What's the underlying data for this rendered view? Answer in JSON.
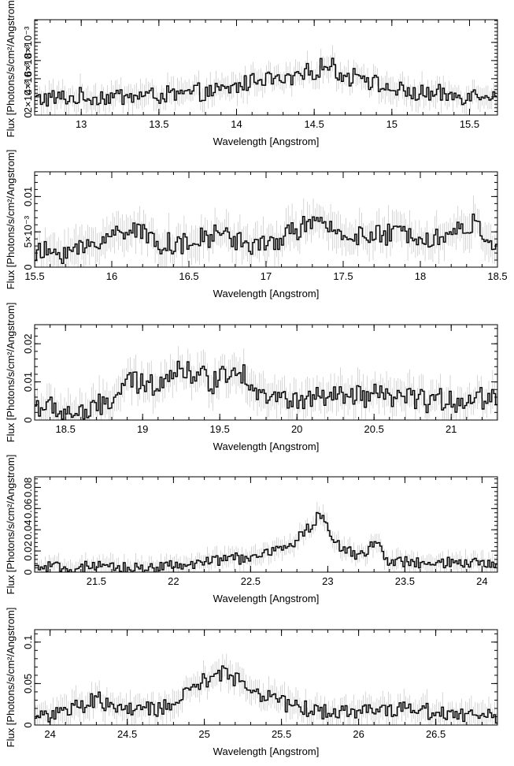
{
  "figure": {
    "panel_count": 5
  },
  "chart_data": [
    {
      "type": "line",
      "style": "step histogram with error bars",
      "xlabel": "Wavelength [Angstrom]",
      "ylabel": "Flux [Photons/s/cm²/Angstrom]",
      "xlim": [
        12.7,
        15.68
      ],
      "ylim": [
        0,
        0.0105
      ],
      "xticks": [
        {
          "v": 13,
          "t": "13"
        },
        {
          "v": 13.5,
          "t": "13.5"
        },
        {
          "v": 14,
          "t": "14"
        },
        {
          "v": 14.5,
          "t": "14.5"
        },
        {
          "v": 15,
          "t": "15"
        },
        {
          "v": 15.5,
          "t": "15.5"
        }
      ],
      "yticks": [
        {
          "v": 0,
          "t": "0"
        },
        {
          "v": 0.002,
          "t": "2×10⁻³"
        },
        {
          "v": 0.004,
          "t": "4×10⁻³"
        },
        {
          "v": 0.006,
          "t": "6×10⁻³"
        },
        {
          "v": 0.008,
          "t": "8×10⁻³"
        }
      ],
      "series": [
        {
          "x": [
            12.7,
            13.0,
            13.3,
            13.6,
            13.9,
            14.05,
            14.15,
            14.3,
            14.45,
            14.6,
            14.7,
            14.8,
            14.9,
            15.05,
            15.2,
            15.4,
            15.6
          ],
          "y": [
            0.0018,
            0.0019,
            0.0021,
            0.0022,
            0.0026,
            0.0034,
            0.0042,
            0.0037,
            0.0045,
            0.0056,
            0.0041,
            0.0047,
            0.0033,
            0.0026,
            0.0023,
            0.0021,
            0.0024
          ],
          "error": 0.0012,
          "noise": 0.0009
        }
      ]
    },
    {
      "type": "line",
      "style": "step histogram with error bars",
      "xlabel": "Wavelength [Angstrom]",
      "ylabel": "Flux [Photons/s/cm²/Angstrom]",
      "xlim": [
        15.5,
        18.5
      ],
      "ylim": [
        0,
        0.0135
      ],
      "xticks": [
        {
          "v": 15.5,
          "t": "15.5"
        },
        {
          "v": 16,
          "t": "16"
        },
        {
          "v": 16.5,
          "t": "16.5"
        },
        {
          "v": 17,
          "t": "17"
        },
        {
          "v": 17.5,
          "t": "17.5"
        },
        {
          "v": 18,
          "t": "18"
        },
        {
          "v": 18.5,
          "t": "18.5"
        }
      ],
      "yticks": [
        {
          "v": 0,
          "t": "0"
        },
        {
          "v": 0.005,
          "t": "5×10⁻³"
        },
        {
          "v": 0.01,
          "t": "0.01"
        }
      ],
      "series": [
        {
          "x": [
            15.5,
            15.8,
            16.0,
            16.12,
            16.3,
            16.5,
            16.7,
            16.85,
            17.0,
            17.2,
            17.3,
            17.5,
            17.7,
            17.9,
            18.1,
            18.35,
            18.5
          ],
          "y": [
            0.0018,
            0.0025,
            0.0045,
            0.0058,
            0.0035,
            0.003,
            0.005,
            0.0035,
            0.0028,
            0.0055,
            0.0062,
            0.0048,
            0.0042,
            0.005,
            0.004,
            0.006,
            0.003
          ],
          "error": 0.0022,
          "noise": 0.0014
        }
      ]
    },
    {
      "type": "line",
      "style": "step histogram with error bars",
      "xlabel": "Wavelength [Angstrom]",
      "ylabel": "Flux [Photons/s/cm²/Angstrom]",
      "xlim": [
        18.3,
        21.3
      ],
      "ylim": [
        0,
        0.025
      ],
      "xticks": [
        {
          "v": 18.5,
          "t": "18.5"
        },
        {
          "v": 19,
          "t": "19"
        },
        {
          "v": 19.5,
          "t": "19.5"
        },
        {
          "v": 20,
          "t": "20"
        },
        {
          "v": 20.5,
          "t": "20.5"
        },
        {
          "v": 21,
          "t": "21"
        }
      ],
      "yticks": [
        {
          "v": 0,
          "t": "0"
        },
        {
          "v": 0.01,
          "t": "0.01"
        },
        {
          "v": 0.02,
          "t": "0.02"
        }
      ],
      "series": [
        {
          "x": [
            18.3,
            18.5,
            18.65,
            18.8,
            18.9,
            19.05,
            19.2,
            19.3,
            19.45,
            19.6,
            19.7,
            19.8,
            20.0,
            20.3,
            20.6,
            20.9,
            21.3
          ],
          "y": [
            0.004,
            0.002,
            0.002,
            0.005,
            0.01,
            0.009,
            0.013,
            0.013,
            0.01,
            0.014,
            0.01,
            0.006,
            0.005,
            0.006,
            0.006,
            0.005,
            0.006
          ],
          "error": 0.004,
          "noise": 0.0028
        }
      ]
    },
    {
      "type": "line",
      "style": "step histogram with error bars",
      "xlabel": "Wavelength [Angstrom]",
      "ylabel": "Flux [Photons/s/cm²/Angstrom]",
      "xlim": [
        21.1,
        24.1
      ],
      "ylim": [
        0,
        0.09
      ],
      "xticks": [
        {
          "v": 21.5,
          "t": "21.5"
        },
        {
          "v": 22,
          "t": "22"
        },
        {
          "v": 22.5,
          "t": "22.5"
        },
        {
          "v": 23,
          "t": "23"
        },
        {
          "v": 23.5,
          "t": "23.5"
        },
        {
          "v": 24,
          "t": "24"
        }
      ],
      "yticks": [
        {
          "v": 0,
          "t": "0"
        },
        {
          "v": 0.02,
          "t": "0.02"
        },
        {
          "v": 0.04,
          "t": "0.04"
        },
        {
          "v": 0.06,
          "t": "0.06"
        },
        {
          "v": 0.08,
          "t": "0.08"
        }
      ],
      "series": [
        {
          "x": [
            21.1,
            21.5,
            21.8,
            22.0,
            22.2,
            22.35,
            22.5,
            22.65,
            22.8,
            22.9,
            22.95,
            23.05,
            23.2,
            23.3,
            23.4,
            23.6,
            24.1
          ],
          "y": [
            0.004,
            0.004,
            0.004,
            0.006,
            0.008,
            0.014,
            0.012,
            0.02,
            0.03,
            0.045,
            0.056,
            0.026,
            0.014,
            0.03,
            0.01,
            0.008,
            0.008
          ],
          "error": 0.008,
          "noise": 0.005
        }
      ]
    },
    {
      "type": "line",
      "style": "step histogram with error bars",
      "xlabel": "Wavelength [Angstrom]",
      "ylabel": "Flux [Photons/s/cm²/Angstrom]",
      "xlim": [
        23.9,
        26.9
      ],
      "ylim": [
        0,
        0.115
      ],
      "xticks": [
        {
          "v": 24,
          "t": "24"
        },
        {
          "v": 24.5,
          "t": "24.5"
        },
        {
          "v": 25,
          "t": "25"
        },
        {
          "v": 25.5,
          "t": "25.5"
        },
        {
          "v": 26,
          "t": "26"
        },
        {
          "v": 26.5,
          "t": "26.5"
        }
      ],
      "yticks": [
        {
          "v": 0,
          "t": "0"
        },
        {
          "v": 0.05,
          "t": "0.05"
        },
        {
          "v": 0.1,
          "t": "0.1"
        }
      ],
      "series": [
        {
          "x": [
            23.9,
            24.1,
            24.3,
            24.5,
            24.7,
            24.85,
            24.95,
            25.05,
            25.15,
            25.25,
            25.4,
            25.6,
            25.8,
            26.0,
            26.3,
            26.6,
            26.9
          ],
          "y": [
            0.012,
            0.015,
            0.03,
            0.018,
            0.018,
            0.032,
            0.05,
            0.055,
            0.065,
            0.05,
            0.035,
            0.022,
            0.015,
            0.018,
            0.02,
            0.015,
            0.01
          ],
          "error": 0.014,
          "noise": 0.009
        }
      ]
    }
  ]
}
